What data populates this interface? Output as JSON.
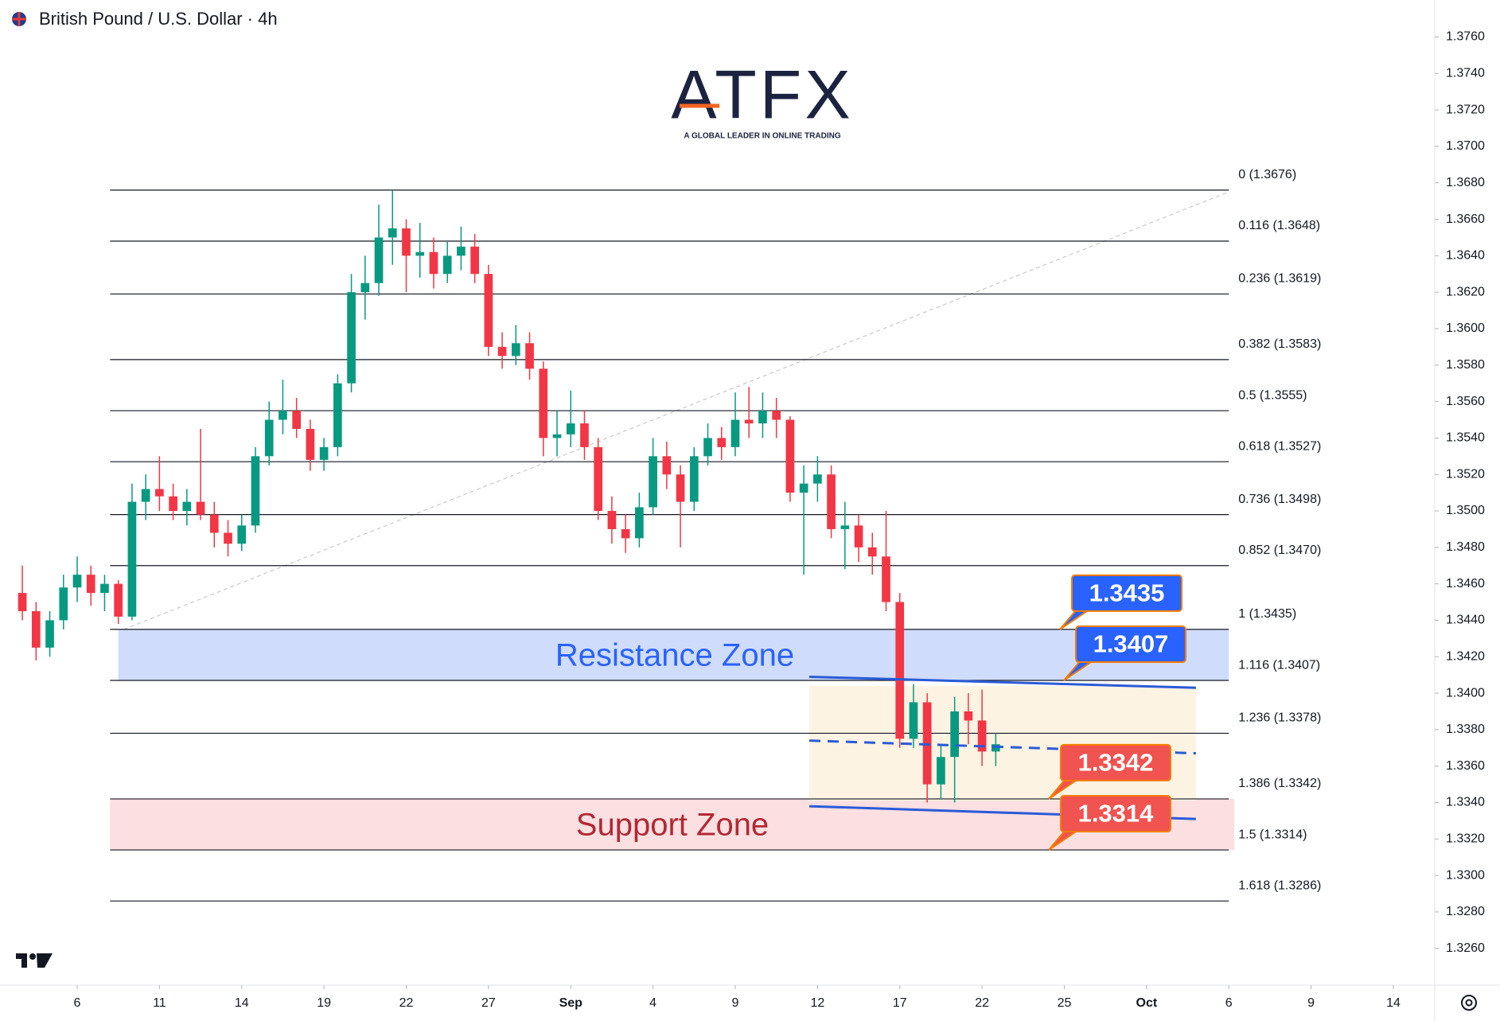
{
  "chart_data": {
    "type": "candlestick",
    "title": "British Pound / U.S. Dollar · 4h",
    "logo": {
      "name": "ATFX",
      "tagline": "A GLOBAL LEADER IN ONLINE TRADING"
    },
    "xlim": [
      -2.815,
      49.51
    ],
    "ylim": [
      1.32398,
      1.37803
    ],
    "xticks": [
      {
        "value": 0,
        "label": "6"
      },
      {
        "value": 3,
        "label": "11"
      },
      {
        "value": 6,
        "label": "14"
      },
      {
        "value": 9,
        "label": "19"
      },
      {
        "value": 12,
        "label": "22"
      },
      {
        "value": 15,
        "label": "27"
      },
      {
        "value": 18,
        "label": "Sep"
      },
      {
        "value": 21,
        "label": "4"
      },
      {
        "value": 24,
        "label": "9"
      },
      {
        "value": 27,
        "label": "12"
      },
      {
        "value": 30,
        "label": "17"
      },
      {
        "value": 33,
        "label": "22"
      },
      {
        "value": 36,
        "label": "25"
      },
      {
        "value": 39,
        "label": "Oct"
      },
      {
        "value": 42,
        "label": "6"
      },
      {
        "value": 45,
        "label": "9"
      },
      {
        "value": 48,
        "label": "14"
      }
    ],
    "yticks": [
      {
        "value": 1.376,
        "label": "1.3760"
      },
      {
        "value": 1.374,
        "label": "1.3740"
      },
      {
        "value": 1.372,
        "label": "1.3720"
      },
      {
        "value": 1.37,
        "label": "1.3700"
      },
      {
        "value": 1.368,
        "label": "1.3680"
      },
      {
        "value": 1.366,
        "label": "1.3660"
      },
      {
        "value": 1.364,
        "label": "1.3640"
      },
      {
        "value": 1.362,
        "label": "1.3620"
      },
      {
        "value": 1.36,
        "label": "1.3600"
      },
      {
        "value": 1.358,
        "label": "1.3580"
      },
      {
        "value": 1.356,
        "label": "1.3560"
      },
      {
        "value": 1.354,
        "label": "1.3540"
      },
      {
        "value": 1.352,
        "label": "1.3520"
      },
      {
        "value": 1.35,
        "label": "1.3500"
      },
      {
        "value": 1.348,
        "label": "1.3480"
      },
      {
        "value": 1.346,
        "label": "1.3460"
      },
      {
        "value": 1.344,
        "label": "1.3440"
      },
      {
        "value": 1.342,
        "label": "1.3420"
      },
      {
        "value": 1.34,
        "label": "1.3400"
      },
      {
        "value": 1.338,
        "label": "1.3380"
      },
      {
        "value": 1.336,
        "label": "1.3360"
      },
      {
        "value": 1.334,
        "label": "1.3340"
      },
      {
        "value": 1.332,
        "label": "1.3320"
      },
      {
        "value": 1.33,
        "label": "1.3300"
      },
      {
        "value": 1.328,
        "label": "1.3280"
      },
      {
        "value": 1.326,
        "label": "1.3260"
      }
    ],
    "up_color": "#089981",
    "down_color": "#f23645",
    "candles": {
      "x": [
        -2,
        -1.5,
        -1,
        -0.5,
        0,
        0.5,
        1,
        1.5,
        2,
        2.5,
        3,
        3.5,
        4,
        4.5,
        5,
        5.5,
        6,
        6.5,
        7,
        7.5,
        8,
        8.5,
        9,
        9.5,
        10,
        10.5,
        11,
        11.5,
        12,
        12.5,
        13,
        13.5,
        14,
        14.5,
        15,
        15.5,
        16,
        16.5,
        17,
        17.5,
        18,
        18.5,
        19,
        19.5,
        20,
        20.5,
        21,
        21.5,
        22,
        22.5,
        23,
        23.5,
        24,
        24.5,
        25,
        25.5,
        26,
        26.5,
        27,
        27.5,
        28,
        28.5,
        29,
        29.5,
        30,
        30.5,
        31,
        31.5,
        32,
        32.5,
        33,
        33.5
      ],
      "ohlc": [
        [
          1.3455,
          1.347,
          1.344,
          1.3445
        ],
        [
          1.3445,
          1.345,
          1.3418,
          1.3425
        ],
        [
          1.3425,
          1.3445,
          1.342,
          1.344
        ],
        [
          1.344,
          1.3465,
          1.3435,
          1.3458
        ],
        [
          1.3458,
          1.3475,
          1.345,
          1.3465
        ],
        [
          1.3465,
          1.347,
          1.3448,
          1.3455
        ],
        [
          1.3455,
          1.3465,
          1.3445,
          1.346
        ],
        [
          1.346,
          1.3462,
          1.3438,
          1.3442
        ],
        [
          1.3442,
          1.3515,
          1.344,
          1.3505
        ],
        [
          1.3505,
          1.352,
          1.3495,
          1.3512
        ],
        [
          1.3512,
          1.353,
          1.35,
          1.3508
        ],
        [
          1.3508,
          1.3515,
          1.3495,
          1.35
        ],
        [
          1.35,
          1.3512,
          1.3492,
          1.3505
        ],
        [
          1.3505,
          1.3545,
          1.3495,
          1.3498
        ],
        [
          1.3498,
          1.3505,
          1.348,
          1.3488
        ],
        [
          1.3488,
          1.3495,
          1.3475,
          1.3482
        ],
        [
          1.3482,
          1.3498,
          1.3478,
          1.3492
        ],
        [
          1.3492,
          1.3535,
          1.3488,
          1.353
        ],
        [
          1.353,
          1.356,
          1.3525,
          1.355
        ],
        [
          1.355,
          1.3572,
          1.3542,
          1.3555
        ],
        [
          1.3555,
          1.3562,
          1.354,
          1.3545
        ],
        [
          1.3545,
          1.355,
          1.3522,
          1.3528
        ],
        [
          1.3528,
          1.354,
          1.3522,
          1.3535
        ],
        [
          1.3535,
          1.3575,
          1.353,
          1.357
        ],
        [
          1.357,
          1.363,
          1.3565,
          1.362
        ],
        [
          1.362,
          1.364,
          1.3605,
          1.3625
        ],
        [
          1.3625,
          1.3668,
          1.3618,
          1.365
        ],
        [
          1.365,
          1.3676,
          1.3635,
          1.3655
        ],
        [
          1.3655,
          1.366,
          1.362,
          1.364
        ],
        [
          1.364,
          1.3658,
          1.3628,
          1.3642
        ],
        [
          1.3642,
          1.365,
          1.3622,
          1.363
        ],
        [
          1.363,
          1.3648,
          1.3625,
          1.364
        ],
        [
          1.364,
          1.3656,
          1.3632,
          1.3645
        ],
        [
          1.3645,
          1.3652,
          1.3625,
          1.363
        ],
        [
          1.363,
          1.3635,
          1.3585,
          1.359
        ],
        [
          1.359,
          1.3598,
          1.3578,
          1.3585
        ],
        [
          1.3585,
          1.3602,
          1.358,
          1.3592
        ],
        [
          1.3592,
          1.3598,
          1.3572,
          1.3578
        ],
        [
          1.3578,
          1.3582,
          1.353,
          1.354
        ],
        [
          1.354,
          1.3555,
          1.353,
          1.3542
        ],
        [
          1.3542,
          1.3566,
          1.3535,
          1.3548
        ],
        [
          1.3548,
          1.3555,
          1.3528,
          1.3535
        ],
        [
          1.3535,
          1.354,
          1.3495,
          1.35
        ],
        [
          1.35,
          1.3508,
          1.3482,
          1.349
        ],
        [
          1.349,
          1.3498,
          1.3477,
          1.3485
        ],
        [
          1.3485,
          1.351,
          1.348,
          1.3502
        ],
        [
          1.3502,
          1.354,
          1.3498,
          1.353
        ],
        [
          1.353,
          1.3538,
          1.3512,
          1.352
        ],
        [
          1.352,
          1.3525,
          1.348,
          1.3505
        ],
        [
          1.3505,
          1.3535,
          1.35,
          1.353
        ],
        [
          1.353,
          1.3548,
          1.3525,
          1.354
        ],
        [
          1.354,
          1.3546,
          1.3528,
          1.3535
        ],
        [
          1.3535,
          1.3565,
          1.353,
          1.355
        ],
        [
          1.355,
          1.3568,
          1.354,
          1.3548
        ],
        [
          1.3548,
          1.3565,
          1.354,
          1.3555
        ],
        [
          1.3555,
          1.3562,
          1.354,
          1.355
        ],
        [
          1.355,
          1.3552,
          1.3505,
          1.351
        ],
        [
          1.351,
          1.3525,
          1.3465,
          1.3515
        ],
        [
          1.3515,
          1.353,
          1.3505,
          1.352
        ],
        [
          1.352,
          1.3525,
          1.3485,
          1.349
        ],
        [
          1.349,
          1.3505,
          1.3468,
          1.3492
        ],
        [
          1.3492,
          1.3498,
          1.3472,
          1.348
        ],
        [
          1.348,
          1.3488,
          1.3465,
          1.3475
        ],
        [
          1.3475,
          1.35,
          1.3445,
          1.345
        ],
        [
          1.345,
          1.3455,
          1.337,
          1.3375
        ],
        [
          1.3375,
          1.3405,
          1.337,
          1.3395
        ],
        [
          1.3395,
          1.34,
          1.334,
          1.335
        ],
        [
          1.335,
          1.3372,
          1.3342,
          1.3365
        ],
        [
          1.3365,
          1.3398,
          1.334,
          1.339
        ],
        [
          1.339,
          1.34,
          1.3372,
          1.3385
        ],
        [
          1.3385,
          1.3402,
          1.336,
          1.3368
        ],
        [
          1.3368,
          1.3378,
          1.336,
          1.3372
        ]
      ]
    },
    "fib": {
      "x": [
        1.2,
        42.0
      ],
      "color": "#131722",
      "levels": [
        {
          "value": 1.3676,
          "label": "0 (1.3676)"
        },
        {
          "value": 1.3648,
          "label": "0.116 (1.3648)"
        },
        {
          "value": 1.3619,
          "label": "0.236 (1.3619)"
        },
        {
          "value": 1.3583,
          "label": "0.382 (1.3583)"
        },
        {
          "value": 1.3555,
          "label": "0.5 (1.3555)"
        },
        {
          "value": 1.3527,
          "label": "0.618 (1.3527)"
        },
        {
          "value": 1.3498,
          "label": "0.736 (1.3498)"
        },
        {
          "value": 1.347,
          "label": "0.852 (1.3470)"
        },
        {
          "value": 1.3435,
          "label": "1 (1.3435)"
        },
        {
          "value": 1.3407,
          "label": "1.116 (1.3407)"
        },
        {
          "value": 1.3378,
          "label": "1.236 (1.3378)"
        },
        {
          "value": 1.3342,
          "label": "1.386 (1.3342)"
        },
        {
          "value": 1.3314,
          "label": "1.5 (1.3314)"
        },
        {
          "value": 1.3286,
          "label": "1.618 (1.3286)"
        }
      ]
    },
    "fib_trend": {
      "x": [
        1.7,
        42.0
      ],
      "y": [
        1.3435,
        1.3675
      ],
      "color": "#c9c9c9"
    },
    "zones": [
      {
        "label": "Resistance Zone",
        "x": [
          1.5,
          42.0
        ],
        "y": [
          1.3407,
          1.3435
        ],
        "color": "#2962ff",
        "fill": "#cfdcfb"
      },
      {
        "label": "Support Zone",
        "x": [
          1.2,
          42.2
        ],
        "y": [
          1.3314,
          1.3342
        ],
        "color": "#b22833",
        "fill": "#fbdfe1"
      }
    ],
    "range_box": {
      "x": [
        26.7,
        40.8
      ],
      "y": [
        1.3341,
        1.3404
      ],
      "fill": "#fdf3e3"
    },
    "channel": {
      "x": [
        26.7,
        40.8
      ],
      "upper": [
        1.3409,
        1.3403
      ],
      "middle": [
        1.3374,
        1.3367
      ],
      "lower": [
        1.3338,
        1.3331
      ],
      "color": "#2a5bd7"
    },
    "callouts": {
      "values": [
        1.3435,
        1.3407,
        1.3342,
        1.3314
      ],
      "colors": [
        "#2962ff",
        "#2962ff",
        "#f05350",
        "#f05350"
      ],
      "border": "#f57c00"
    }
  }
}
